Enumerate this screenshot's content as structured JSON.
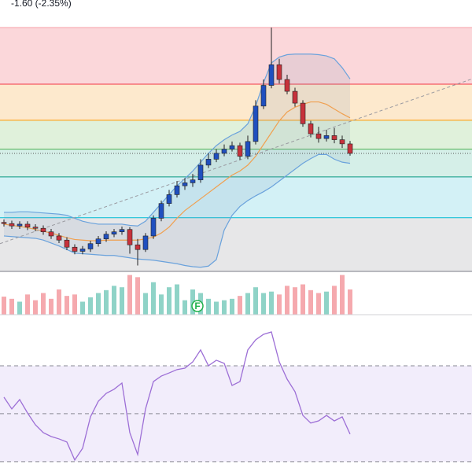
{
  "chart_data": [
    {
      "type": "candlestick",
      "change_label": "-1.60 (-2.35%)",
      "ylim": [
        46.5,
        87.8
      ],
      "up_color": "#1f4fbf",
      "down_color": "#c7323c",
      "open": [
        54.8,
        54.6,
        54.2,
        54.5,
        54.0,
        53.8,
        53.2,
        52.5,
        51.8,
        50.6,
        49.9,
        50.3,
        51.2,
        52.0,
        52.8,
        53.2,
        53.6,
        51.0,
        50.2,
        52.5,
        55.5,
        58.0,
        59.5,
        61.0,
        61.5,
        62.0,
        64.5,
        65.5,
        66.5,
        67.2,
        67.8,
        66.0,
        68.5,
        74.5,
        78.0,
        81.5,
        79.0,
        77.0,
        75.0,
        71.5,
        69.8,
        69.0,
        69.5,
        68.8,
        68.09
      ],
      "high": [
        55.3,
        55.1,
        55.0,
        55.0,
        54.5,
        54.3,
        53.7,
        53.0,
        52.3,
        51.1,
        50.8,
        51.7,
        52.5,
        53.3,
        53.7,
        54.1,
        54.0,
        52.0,
        53.0,
        56.0,
        58.5,
        60.3,
        61.8,
        62.3,
        63.0,
        65.5,
        66.5,
        67.2,
        68.0,
        68.5,
        68.3,
        69.5,
        75.5,
        79.0,
        87.8,
        82.5,
        79.8,
        77.6,
        75.5,
        72.0,
        71.0,
        70.5,
        70.8,
        69.5,
        68.6
      ],
      "low": [
        54.1,
        53.7,
        53.7,
        53.5,
        53.3,
        52.7,
        52.0,
        51.3,
        50.1,
        49.4,
        49.4,
        49.8,
        50.7,
        51.5,
        52.3,
        52.7,
        49.5,
        47.5,
        49.8,
        52.0,
        55.0,
        57.5,
        59.0,
        60.3,
        60.8,
        61.5,
        64.0,
        65.0,
        66.0,
        66.8,
        65.4,
        65.5,
        68.0,
        74.0,
        77.5,
        78.3,
        76.5,
        74.4,
        71.0,
        69.2,
        68.3,
        68.5,
        68.2,
        67.4,
        66.1
      ],
      "close": [
        54.6,
        54.2,
        54.5,
        54.0,
        53.8,
        53.2,
        52.5,
        51.8,
        50.6,
        49.9,
        50.3,
        51.2,
        52.0,
        52.8,
        53.2,
        53.6,
        51.0,
        50.2,
        52.5,
        55.5,
        58.0,
        59.5,
        61.0,
        61.5,
        62.0,
        64.5,
        65.5,
        66.5,
        67.2,
        67.8,
        66.0,
        68.5,
        74.5,
        78.0,
        81.5,
        79.0,
        77.0,
        75.0,
        71.5,
        69.8,
        69.0,
        69.5,
        68.8,
        68.1,
        66.49
      ],
      "band_upper": [
        56.5,
        56.5,
        56.6,
        56.6,
        56.5,
        56.4,
        56.3,
        56.2,
        56.0,
        55.5,
        55.0,
        54.7,
        54.5,
        54.5,
        54.5,
        54.5,
        54.3,
        54.2,
        55.0,
        56.5,
        58.0,
        59.5,
        61.0,
        62.2,
        63.5,
        65.0,
        66.5,
        67.8,
        68.8,
        69.6,
        70.2,
        71.5,
        74.5,
        78.5,
        81.8,
        82.8,
        83.2,
        83.3,
        83.3,
        83.3,
        83.2,
        83.0,
        82.5,
        81.0,
        79.1
      ],
      "band_middle": [
        54.5,
        54.3,
        54.1,
        53.9,
        53.6,
        53.3,
        53.0,
        52.6,
        52.2,
        51.9,
        51.8,
        51.7,
        51.7,
        51.8,
        51.8,
        51.8,
        51.8,
        51.8,
        52.0,
        52.3,
        53.0,
        54.0,
        55.5,
        56.8,
        57.8,
        58.8,
        59.8,
        60.8,
        61.8,
        62.8,
        63.5,
        64.5,
        66.0,
        68.0,
        70.0,
        72.0,
        73.5,
        74.3,
        74.8,
        75.2,
        75.2,
        74.8,
        74.0,
        73.2,
        72.5
      ],
      "band_lower": [
        52.5,
        52.4,
        52.3,
        52.2,
        52.1,
        51.8,
        51.3,
        50.8,
        50.2,
        49.6,
        49.5,
        49.4,
        49.3,
        49.2,
        49.2,
        49.0,
        48.8,
        48.6,
        48.5,
        48.4,
        48.2,
        48.0,
        47.8,
        47.5,
        47.3,
        47.2,
        47.4,
        48.5,
        53.5,
        56.0,
        57.5,
        58.5,
        59.3,
        60.0,
        60.8,
        61.8,
        62.8,
        63.8,
        64.8,
        65.6,
        66.3,
        66.3,
        65.5,
        65.0,
        64.8
      ],
      "band_color": "#6aa2dc",
      "middle_color": "#f0a050",
      "levels": [
        87.8,
        78.2,
        72.1,
        67.2,
        62.5,
        55.6,
        46.5
      ],
      "level_colors": [
        "#f7a1a8",
        "#f23645",
        "#ff9800",
        "#4caf50",
        "#089981",
        "#00bcd4",
        "#787b86"
      ],
      "zone_colors": [
        "#fbd7da",
        "#fde9cd",
        "#e0f1db",
        "#d5efe8",
        "#d3f1f6",
        "#e7e7e8"
      ],
      "trend_line": [
        51.2,
        79.1
      ]
    },
    {
      "type": "bar",
      "ylim": [
        0,
        60
      ],
      "up_color": "#8fd3c7",
      "down_color": "#f5a9ae",
      "values": [
        25,
        22,
        18,
        28,
        20,
        30,
        22,
        35,
        26,
        28,
        18,
        24,
        30,
        34,
        40,
        38,
        55,
        52,
        30,
        45,
        28,
        38,
        42,
        20,
        35,
        30,
        22,
        18,
        20,
        22,
        26,
        30,
        38,
        30,
        32,
        28,
        40,
        38,
        42,
        34,
        30,
        32,
        40,
        55,
        35
      ],
      "annotation": {
        "text": "F",
        "index": 25
      }
    },
    {
      "type": "line",
      "ylim": [
        25.7,
        91.3
      ],
      "yticks": [
        70,
        50,
        30
      ],
      "color": "#9d6fd6",
      "fill": "#f2edfb",
      "values": [
        56.9,
        52,
        55.9,
        50.3,
        45.4,
        42.1,
        40.5,
        39.5,
        38.2,
        30.7,
        35.6,
        48.7,
        55.2,
        58.5,
        60.2,
        62.8,
        42.1,
        33,
        52,
        63.4,
        65.7,
        67,
        68.4,
        69,
        71.6,
        76.6,
        70,
        72.3,
        71,
        61.8,
        63.4,
        76.6,
        80.8,
        83.1,
        84.1,
        71.6,
        64.4,
        59.2,
        49.3,
        46.1,
        47,
        49.3,
        47,
        48.7,
        41.5
      ]
    }
  ]
}
